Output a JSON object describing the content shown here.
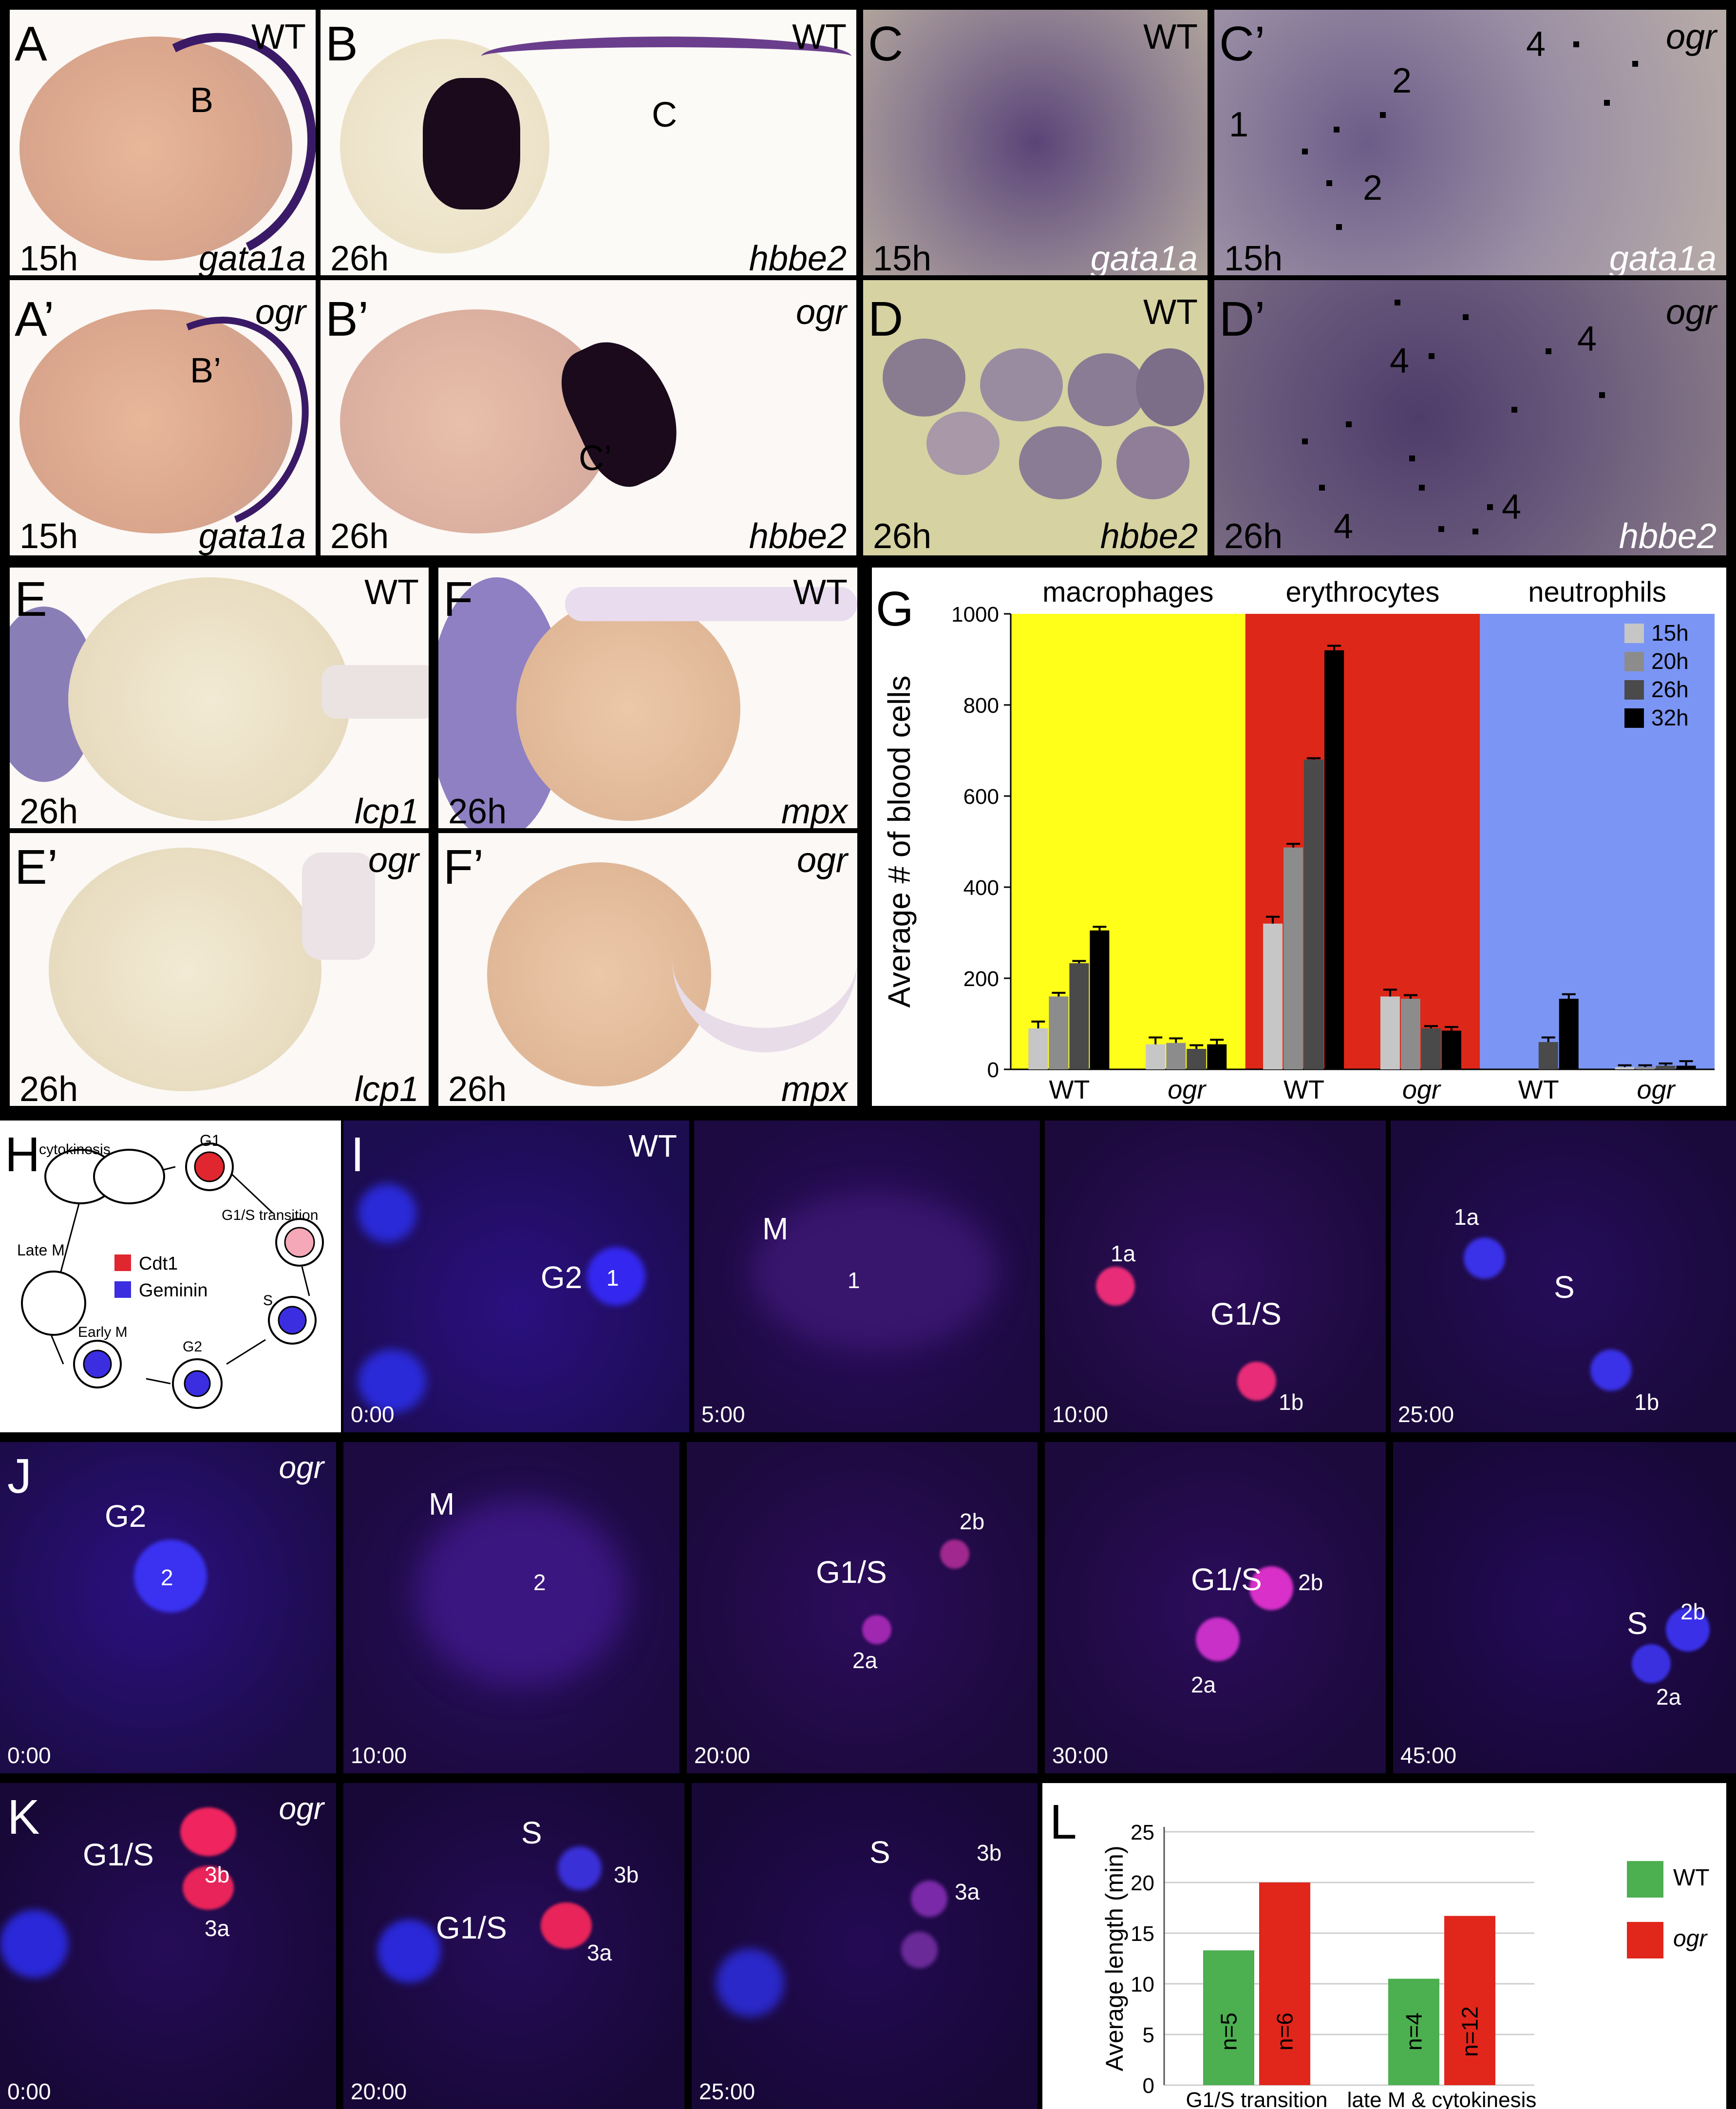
{
  "panels": {
    "A": {
      "letter": "A",
      "genotype": "WT",
      "inset_letter": "B",
      "time": "15h",
      "gene": "gata1a"
    },
    "A2": {
      "letter": "A’",
      "genotype": "ogr",
      "inset_letter": "B’",
      "time": "15h",
      "gene": "gata1a"
    },
    "B": {
      "letter": "B",
      "genotype": "WT",
      "inset_letter": "C",
      "time": "26h",
      "gene": "hbbe2"
    },
    "B2": {
      "letter": "B’",
      "genotype": "ogr",
      "inset_letter": "C’",
      "time": "26h",
      "gene": "hbbe2"
    },
    "C": {
      "letter": "C",
      "genotype": "WT",
      "time": "15h",
      "gene": "gata1a"
    },
    "C2": {
      "letter": "C’",
      "genotype": "ogr",
      "time": "15h",
      "gene": "gata1a",
      "cell_labels": [
        "1",
        "2",
        "2",
        "4"
      ]
    },
    "D": {
      "letter": "D",
      "genotype": "WT",
      "time": "26h",
      "gene": "hbbe2"
    },
    "D2": {
      "letter": "D’",
      "genotype": "ogr",
      "time": "26h",
      "gene": "hbbe2",
      "cell_labels": [
        "4",
        "4",
        "4",
        "4"
      ]
    },
    "E": {
      "letter": "E",
      "genotype": "WT",
      "time": "26h",
      "gene": "lcp1"
    },
    "E2": {
      "letter": "E’",
      "genotype": "ogr",
      "time": "26h",
      "gene": "lcp1"
    },
    "F": {
      "letter": "F",
      "genotype": "WT",
      "time": "26h",
      "gene": "mpx"
    },
    "F2": {
      "letter": "F’",
      "genotype": "ogr",
      "time": "26h",
      "gene": "mpx"
    },
    "G": {
      "letter": "G"
    },
    "H": {
      "letter": "H",
      "stages": [
        "cytokinesis",
        "G1",
        "G1/S transition",
        "S",
        "G2",
        "Early M",
        "Late M"
      ],
      "legend": [
        "Cdt1",
        "Geminin"
      ]
    },
    "I": {
      "letter": "I",
      "genotype": "WT",
      "frames": [
        {
          "time": "0:00",
          "phase": "G2",
          "cells": [
            "1"
          ]
        },
        {
          "time": "5:00",
          "phase": "M",
          "cells": [
            "1"
          ]
        },
        {
          "time": "10:00",
          "phase": "G1/S",
          "cells": [
            "1a",
            "1b"
          ]
        },
        {
          "time": "25:00",
          "phase": "S",
          "cells": [
            "1a",
            "1b"
          ]
        }
      ]
    },
    "J": {
      "letter": "J",
      "genotype": "ogr",
      "frames": [
        {
          "time": "0:00",
          "phase": "G2",
          "cells": [
            "2"
          ]
        },
        {
          "time": "10:00",
          "phase": "M",
          "cells": [
            "2"
          ]
        },
        {
          "time": "20:00",
          "phase": "G1/S",
          "cells": [
            "2b",
            "2a"
          ]
        },
        {
          "time": "30:00",
          "phase": "G1/S",
          "cells": [
            "2b",
            "2a"
          ]
        },
        {
          "time": "45:00",
          "phase": "S",
          "cells": [
            "2b",
            "2a"
          ]
        }
      ]
    },
    "K": {
      "letter": "K",
      "genotype": "ogr",
      "frames": [
        {
          "time": "0:00",
          "phase": "G1/S",
          "cells": [
            "3b",
            "3a"
          ]
        },
        {
          "time": "20:00",
          "phase": "S",
          "phase2": "G1/S",
          "cells": [
            "3b",
            "3a"
          ]
        },
        {
          "time": "25:00",
          "phase": "S",
          "cells": [
            "3b",
            "3a"
          ]
        }
      ]
    },
    "L": {
      "letter": "L"
    }
  },
  "colors": {
    "wt_green": "#4caf50",
    "ogr_red": "#e1261c",
    "macrophage_bg": "#ffff1a",
    "erythrocyte_bg": "#dd2718",
    "neutrophil_bg": "#7b95f4",
    "geminin_blue": "#3a2ee0",
    "cdt1_red": "#e0262f"
  },
  "chart_data": [
    {
      "type": "bar",
      "panel": "G",
      "ylabel": "Average # of blood cells",
      "ylim": [
        0,
        1000
      ],
      "yticks": [
        0,
        200,
        400,
        600,
        800,
        1000
      ],
      "groups": [
        "macrophages",
        "erythrocytes",
        "neutrophils"
      ],
      "categories": [
        "WT",
        "ogr",
        "WT",
        "ogr",
        "WT",
        "ogr"
      ],
      "series": [
        {
          "name": "15h",
          "color": "#c6c6c6",
          "values": [
            90,
            55,
            320,
            160,
            0,
            5
          ],
          "errors": [
            15,
            15,
            15,
            15,
            0,
            4
          ]
        },
        {
          "name": "20h",
          "color": "#8c8c8c",
          "values": [
            160,
            58,
            487,
            155,
            0,
            5
          ],
          "errors": [
            8,
            10,
            8,
            8,
            0,
            4
          ]
        },
        {
          "name": "26h",
          "color": "#4a4a4a",
          "values": [
            233,
            45,
            680,
            90,
            60,
            8
          ],
          "errors": [
            5,
            8,
            3,
            5,
            10,
            5
          ]
        },
        {
          "name": "32h",
          "color": "#000000",
          "values": [
            305,
            55,
            920,
            85,
            155,
            8
          ],
          "errors": [
            8,
            10,
            10,
            8,
            10,
            10
          ]
        }
      ],
      "legend_position": "top-right"
    },
    {
      "type": "bar",
      "panel": "L",
      "ylabel": "Average length (min)",
      "ylim": [
        0,
        25
      ],
      "yticks": [
        0,
        5,
        10,
        15,
        20,
        25
      ],
      "categories": [
        "G1/S transition",
        "late M & cytokinesis"
      ],
      "series": [
        {
          "name": "WT",
          "color": "#4caf50",
          "values": [
            13.3,
            10.5
          ],
          "n": [
            "n=5",
            "n=4"
          ]
        },
        {
          "name": "ogr",
          "color": "#e1261c",
          "values": [
            20,
            16.7
          ],
          "n": [
            "n=6",
            "n=12"
          ]
        }
      ],
      "grid": true,
      "legend_position": "right"
    }
  ]
}
